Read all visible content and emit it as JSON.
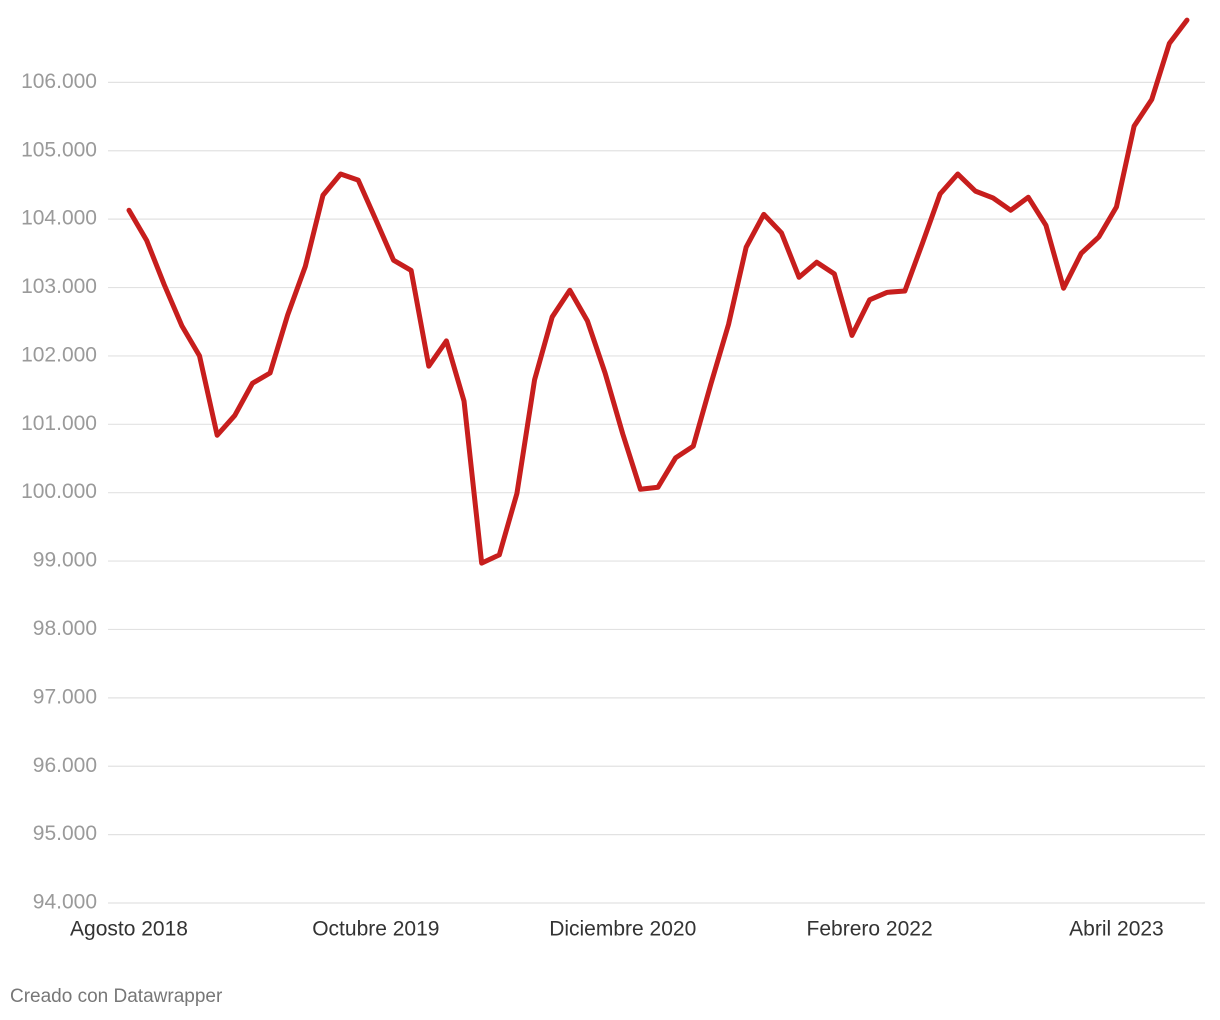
{
  "chart_data": {
    "type": "line",
    "categories": [
      "Agosto 2018",
      null,
      null,
      null,
      null,
      null,
      null,
      null,
      null,
      null,
      null,
      null,
      null,
      null,
      "Octubre 2019",
      null,
      null,
      null,
      null,
      null,
      null,
      null,
      null,
      null,
      null,
      null,
      null,
      null,
      "Diciembre 2020",
      null,
      null,
      null,
      null,
      null,
      null,
      null,
      null,
      null,
      null,
      null,
      null,
      null,
      "Febrero 2022",
      null,
      null,
      null,
      null,
      null,
      null,
      null,
      null,
      null,
      null,
      null,
      null,
      null,
      "Abril 2023",
      null,
      null,
      null,
      null
    ],
    "series": [
      {
        "color": "#c71e1d",
        "values": [
          104130,
          103690,
          103040,
          102440,
          102000,
          100840,
          101130,
          101600,
          101750,
          102600,
          103310,
          104350,
          104660,
          104570,
          103990,
          103400,
          103250,
          101850,
          102220,
          101340,
          98970,
          99090,
          99990,
          101650,
          102570,
          102960,
          102510,
          101750,
          100860,
          100050,
          100080,
          100510,
          100680,
          101590,
          102460,
          103590,
          104070,
          103800,
          103150,
          103370,
          103200,
          102300,
          102820,
          102930,
          102950,
          103650,
          104370,
          104660,
          104410,
          104310,
          104130,
          104320,
          103910,
          102990,
          103500,
          103740,
          104180,
          105360,
          105750,
          106570,
          106910
        ]
      }
    ],
    "ylim": [
      94000,
      107000
    ],
    "yticks": [
      {
        "value": 94000,
        "label": "94.000"
      },
      {
        "value": 95000,
        "label": "95.000"
      },
      {
        "value": 96000,
        "label": "96.000"
      },
      {
        "value": 97000,
        "label": "97.000"
      },
      {
        "value": 98000,
        "label": "98.000"
      },
      {
        "value": 99000,
        "label": "99.000"
      },
      {
        "value": 100000,
        "label": "100.000"
      },
      {
        "value": 101000,
        "label": "101.000"
      },
      {
        "value": 102000,
        "label": "102.000"
      },
      {
        "value": 103000,
        "label": "103.000"
      },
      {
        "value": 104000,
        "label": "104.000"
      },
      {
        "value": 105000,
        "label": "105.000"
      },
      {
        "value": 106000,
        "label": "106.000"
      }
    ],
    "grid": true,
    "credit": "Creado con Datawrapper"
  }
}
